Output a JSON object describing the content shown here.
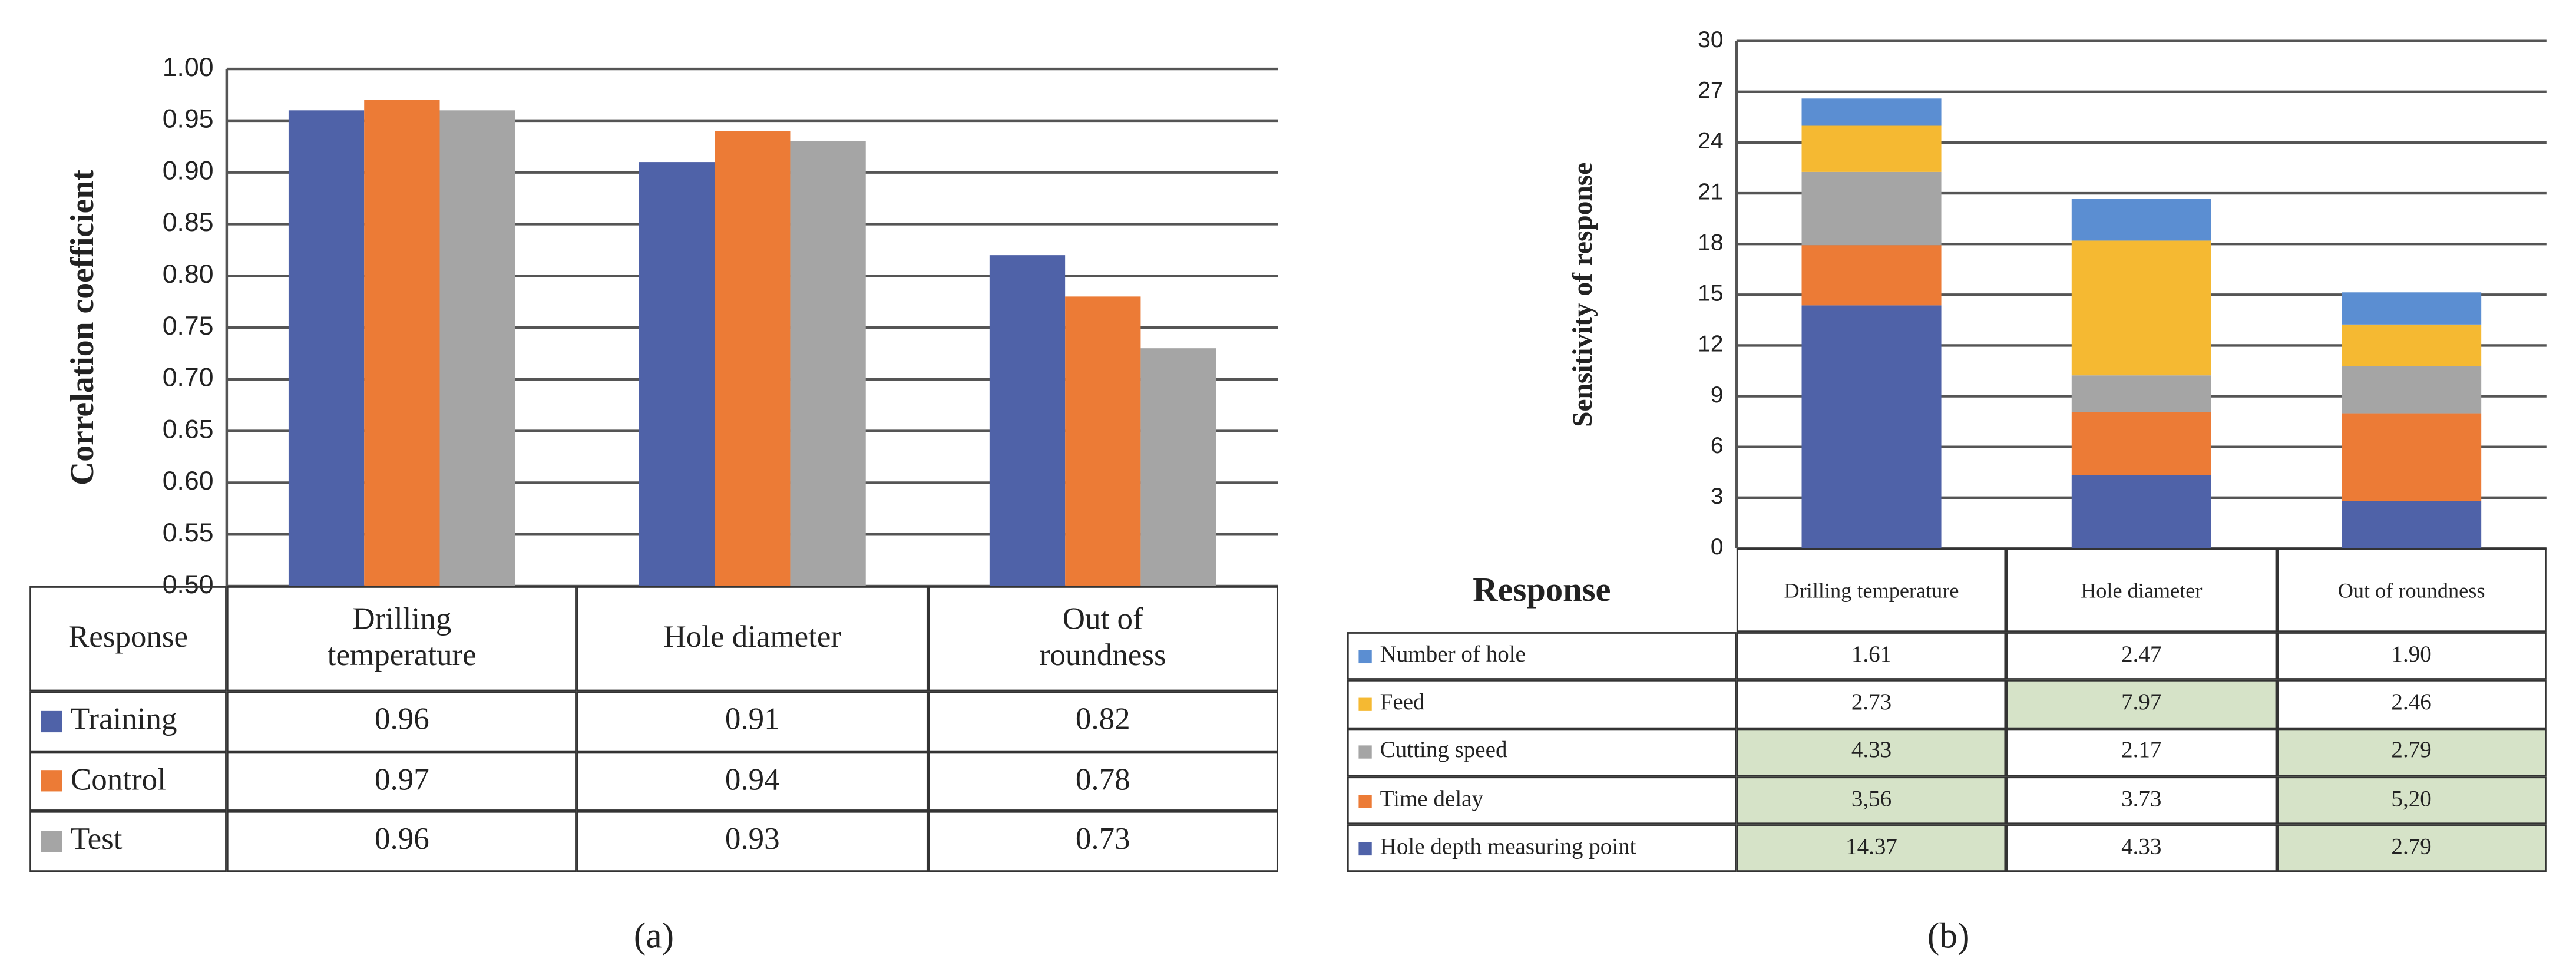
{
  "chart_data": [
    {
      "type": "bar",
      "ylabel": "Correlation coefficient",
      "table_header": "Response",
      "caption": "(a)",
      "categories": [
        "Drilling temperature",
        "Hole diameter",
        "Out of roundness"
      ],
      "series": [
        {
          "name": "Training",
          "color": "#4f62a8",
          "values": [
            0.96,
            0.91,
            0.82
          ]
        },
        {
          "name": "Control",
          "color": "#ec7b36",
          "values": [
            0.97,
            0.94,
            0.78
          ]
        },
        {
          "name": "Test",
          "color": "#a5a5a5",
          "values": [
            0.96,
            0.93,
            0.73
          ]
        }
      ],
      "ylim": [
        0.5,
        1.0
      ],
      "yticks": [
        {
          "value": 0.5,
          "label": "0.50"
        },
        {
          "value": 0.55,
          "label": "0.55"
        },
        {
          "value": 0.6,
          "label": "0.60"
        },
        {
          "value": 0.65,
          "label": "0.65"
        },
        {
          "value": 0.7,
          "label": "0.70"
        },
        {
          "value": 0.75,
          "label": "0.75"
        },
        {
          "value": 0.8,
          "label": "0.80"
        },
        {
          "value": 0.85,
          "label": "0.85"
        },
        {
          "value": 0.9,
          "label": "0.90"
        },
        {
          "value": 0.95,
          "label": "0.95"
        },
        {
          "value": 1.0,
          "label": "1.00"
        }
      ],
      "grid": true
    },
    {
      "type": "stacked_bar",
      "ylabel": "Sensitivity of response",
      "table_header": "Response",
      "caption": "(b)",
      "categories": [
        "Drilling temperature",
        "Hole diameter",
        "Out of roundness"
      ],
      "series": [
        {
          "name": "Number of hole",
          "color": "#5b8ed2",
          "values": [
            1.61,
            2.47,
            1.9
          ],
          "value_labels": [
            "1.61",
            "2.47",
            "1.90"
          ],
          "highlight": [
            false,
            false,
            false
          ]
        },
        {
          "name": "Feed",
          "color": "#f5b932",
          "values": [
            2.73,
            7.97,
            2.46
          ],
          "value_labels": [
            "2.73",
            "7.97",
            "2.46"
          ],
          "highlight": [
            false,
            true,
            false
          ]
        },
        {
          "name": "Cutting speed",
          "color": "#a5a5a5",
          "values": [
            4.33,
            2.17,
            2.79
          ],
          "value_labels": [
            "4.33",
            "2.17",
            "2.79"
          ],
          "highlight": [
            true,
            false,
            true
          ]
        },
        {
          "name": "Time delay",
          "color": "#ec7b36",
          "values": [
            3.56,
            3.73,
            5.2
          ],
          "value_labels": [
            "3,56",
            "3.73",
            "5,20"
          ],
          "highlight": [
            true,
            false,
            true
          ]
        },
        {
          "name": "Hole depth measuring point",
          "color": "#4f62a8",
          "values": [
            14.37,
            4.33,
            2.79
          ],
          "value_labels": [
            "14.37",
            "4.33",
            "2.79"
          ],
          "highlight": [
            true,
            false,
            true
          ]
        }
      ],
      "ylim": [
        0,
        30
      ],
      "yticks": [
        0,
        3,
        6,
        9,
        12,
        15,
        18,
        21,
        24,
        27,
        30
      ],
      "grid": true
    }
  ]
}
